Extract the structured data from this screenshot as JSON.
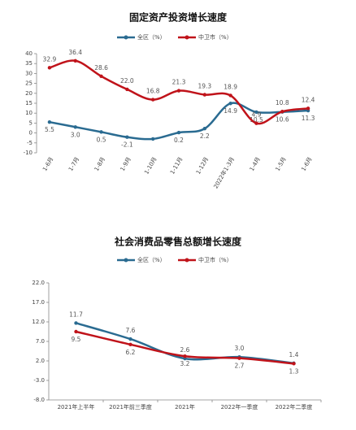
{
  "chart_data": [
    {
      "type": "line",
      "title": "固定资产投资增长速度",
      "categories": [
        "1-6月",
        "1-7月",
        "1-8月",
        "1-9月",
        "1-10月",
        "1-11月",
        "1-12月",
        "2022年1-3月",
        "1-4月",
        "1-5月",
        "1-6月"
      ],
      "series": [
        {
          "name": "全区（%）",
          "color": "#2a6b91",
          "values": [
            5.5,
            3.0,
            0.5,
            -2.1,
            -3.0,
            0.2,
            2.2,
            14.9,
            10.5,
            10.6,
            11.3
          ],
          "value_labels": [
            "5.5",
            "3.0",
            "0.5",
            "-2.1",
            null,
            "0.2",
            "2.2",
            "14.9",
            "10.5",
            "10.6",
            "11.3"
          ]
        },
        {
          "name": "中卫市（%）",
          "color": "#c0131a",
          "values": [
            32.9,
            36.4,
            28.6,
            22.0,
            16.8,
            21.3,
            19.3,
            18.9,
            4.9,
            10.8,
            12.4
          ],
          "value_labels": [
            "32.9",
            "36.4",
            "28.6",
            "22.0",
            "16.8",
            "21.3",
            "19.3",
            "18.9",
            "4.9",
            "10.8",
            "12.4"
          ]
        }
      ],
      "ylim": [
        -10,
        40
      ],
      "yticks": [
        -10,
        -5,
        0,
        5,
        10,
        15,
        20,
        25,
        30,
        35,
        40
      ],
      "grid": false
    },
    {
      "type": "line",
      "title": "社会消费品零售总额增长速度",
      "categories": [
        "2021年上半年",
        "2021年前三季度",
        "2021年",
        "2022年一季度",
        "2022年二季度"
      ],
      "series": [
        {
          "name": "全区（%）",
          "color": "#2a6b91",
          "values": [
            11.7,
            7.6,
            2.6,
            3.0,
            1.4
          ],
          "value_labels": [
            "11.7",
            "7.6",
            "2.6",
            "3.0",
            "1.4"
          ]
        },
        {
          "name": "中卫市（%）",
          "color": "#c0131a",
          "values": [
            9.5,
            6.2,
            3.2,
            2.7,
            1.3
          ],
          "value_labels": [
            "9.5",
            "6.2",
            "3.2",
            "2.7",
            "1.3"
          ]
        }
      ],
      "ylim": [
        -8,
        22
      ],
      "yticks": [
        {
          "value": -8,
          "label": "-8.0"
        },
        {
          "value": -3,
          "label": "-3.0"
        },
        {
          "value": 2,
          "label": "2.0"
        },
        {
          "value": 7,
          "label": "7.0"
        },
        {
          "value": 12,
          "label": "12.0"
        },
        {
          "value": 17,
          "label": "17.0"
        },
        {
          "value": 22,
          "label": "22.0"
        }
      ],
      "grid": false
    }
  ]
}
